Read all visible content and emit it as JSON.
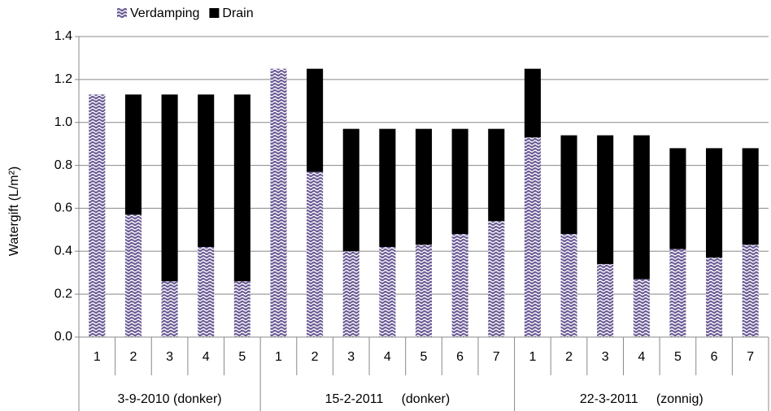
{
  "chart_data": {
    "type": "stacked-bar",
    "y_label": "Watergift (L/m²)",
    "groups": [
      {
        "label": "3-9-2010 (donker)",
        "categories": [
          "1",
          "2",
          "3",
          "4",
          "5"
        ]
      },
      {
        "label": "15-2-2011     (donker)",
        "categories": [
          "1",
          "2",
          "3",
          "4",
          "5",
          "6",
          "7"
        ]
      },
      {
        "label": "22-3-2011     (zonnig)",
        "categories": [
          "1",
          "2",
          "3",
          "4",
          "5",
          "6",
          "7"
        ]
      }
    ],
    "series": [
      {
        "name": "Verdamping",
        "color": "#6b5b95",
        "pattern": "wave",
        "values": [
          1.13,
          0.57,
          0.26,
          0.42,
          0.26,
          1.25,
          0.77,
          0.4,
          0.42,
          0.43,
          0.48,
          0.54,
          0.93,
          0.48,
          0.34,
          0.27,
          0.41,
          0.37,
          0.43
        ]
      },
      {
        "name": "Drain",
        "color": "#000000",
        "values": [
          0,
          0.56,
          0.87,
          0.71,
          0.87,
          0,
          0.48,
          0.57,
          0.55,
          0.54,
          0.49,
          0.43,
          0.32,
          0.46,
          0.6,
          0.67,
          0.47,
          0.51,
          0.45
        ]
      }
    ],
    "ylim": [
      0,
      1.4
    ],
    "yticks": [
      {
        "value": 0,
        "label": "0.0"
      },
      0.2,
      0.4,
      0.6,
      0.8,
      {
        "value": 1,
        "label": "1.0"
      },
      1.2,
      1.4
    ],
    "grid": true,
    "legend": "top-left"
  }
}
